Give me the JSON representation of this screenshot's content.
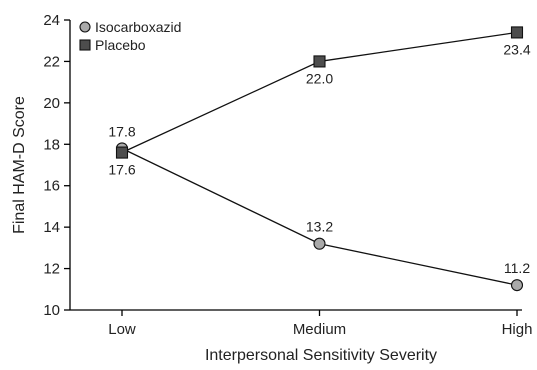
{
  "chart_data": {
    "type": "line",
    "xlabel": "Interpersonal Sensitivity Severity",
    "ylabel": "Final HAM-D Score",
    "categories": [
      "Low",
      "Medium",
      "High"
    ],
    "ylim": [
      10,
      24
    ],
    "yticks": [
      10,
      12,
      14,
      16,
      18,
      20,
      22,
      24
    ],
    "yticks_labels": [
      "10",
      "12",
      "14",
      "16",
      "18",
      "20",
      "22",
      "24"
    ],
    "grid": false,
    "legend_position": "top-left",
    "series": [
      {
        "name": "Isocarboxazid",
        "marker": "circle",
        "color": "#a9a9a9",
        "values": [
          17.8,
          13.2,
          11.2
        ],
        "labels": [
          "17.8",
          "13.2",
          "11.2"
        ],
        "label_position": "above"
      },
      {
        "name": "Placebo",
        "marker": "square",
        "color": "#4d4d4d",
        "values": [
          17.6,
          22.0,
          23.4
        ],
        "labels": [
          "17.6",
          "22.0",
          "23.4"
        ],
        "label_position": "below"
      }
    ]
  }
}
